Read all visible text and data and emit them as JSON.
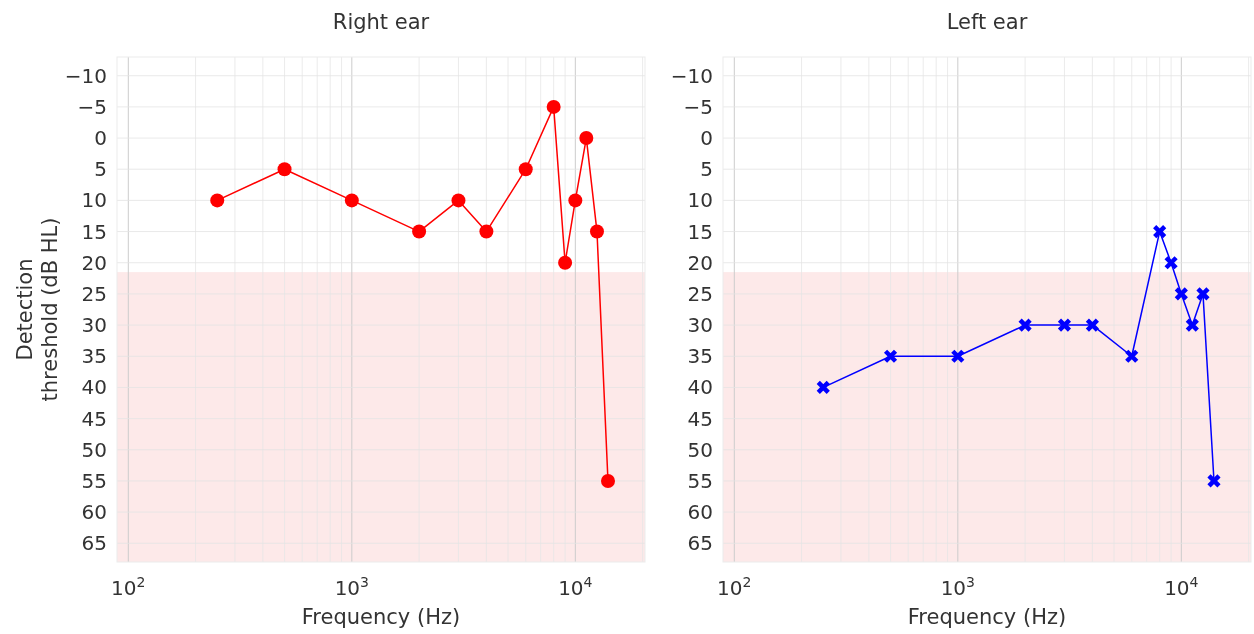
{
  "chart_data": [
    {
      "type": "line",
      "title": "Right ear",
      "xlabel": "Frequency (Hz)",
      "ylabel": "Detection\nthreshold (dB HL)",
      "log": "x",
      "grid": true,
      "marker": "circle",
      "line_style": "solid",
      "x": [
        250,
        500,
        1000,
        2000,
        3000,
        4000,
        6000,
        8000,
        9000,
        10000,
        11200,
        12500,
        14000
      ],
      "series": [
        {
          "color": "#ff0000",
          "values": [
            10,
            5,
            10,
            15,
            10,
            15,
            5,
            -5,
            20,
            10,
            0,
            15,
            55
          ]
        }
      ],
      "xlim": [
        89,
        20500
      ],
      "ylim": [
        68,
        -13
      ],
      "xticks": [
        {
          "value": 100,
          "label": "10$^{2}$"
        },
        {
          "value": 200,
          "label": null
        },
        {
          "value": 300,
          "label": null
        },
        {
          "value": 400,
          "label": null
        },
        {
          "value": 500,
          "label": null
        },
        {
          "value": 600,
          "label": null
        },
        {
          "value": 700,
          "label": null
        },
        {
          "value": 800,
          "label": null
        },
        {
          "value": 900,
          "label": null
        },
        {
          "value": 1000,
          "label": "10$^{3}$"
        },
        {
          "value": 2000,
          "label": null
        },
        {
          "value": 3000,
          "label": null
        },
        {
          "value": 4000,
          "label": null
        },
        {
          "value": 5000,
          "label": null
        },
        {
          "value": 6000,
          "label": null
        },
        {
          "value": 7000,
          "label": null
        },
        {
          "value": 8000,
          "label": null
        },
        {
          "value": 9000,
          "label": null
        },
        {
          "value": 10000,
          "label": "10$^{4}$"
        },
        {
          "value": 20000,
          "label": null
        }
      ],
      "yticks": [
        -10,
        -5,
        0,
        5,
        10,
        15,
        20,
        25,
        30,
        35,
        40,
        45,
        50,
        55,
        60,
        65
      ],
      "bands": [
        {
          "axis": "y",
          "from": 21.5,
          "to": 68,
          "color": "#fde9e9"
        }
      ]
    },
    {
      "type": "line",
      "title": "Left ear",
      "xlabel": "Frequency (Hz)",
      "log": "x",
      "grid": true,
      "marker": "cross",
      "line_style": "solid",
      "x": [
        250,
        500,
        1000,
        2000,
        3000,
        4000,
        6000,
        8000,
        9000,
        10000,
        11200,
        12500,
        14000
      ],
      "series": [
        {
          "color": "#0000ff",
          "values": [
            40,
            35,
            35,
            30,
            30,
            30,
            35,
            15,
            20,
            25,
            30,
            25,
            55
          ]
        }
      ],
      "xlim": [
        89,
        20500
      ],
      "ylim": [
        68,
        -13
      ],
      "xticks": [
        {
          "value": 100,
          "label": "10$^{2}$"
        },
        {
          "value": 200,
          "label": null
        },
        {
          "value": 300,
          "label": null
        },
        {
          "value": 400,
          "label": null
        },
        {
          "value": 500,
          "label": null
        },
        {
          "value": 600,
          "label": null
        },
        {
          "value": 700,
          "label": null
        },
        {
          "value": 800,
          "label": null
        },
        {
          "value": 900,
          "label": null
        },
        {
          "value": 1000,
          "label": "10$^{3}$"
        },
        {
          "value": 2000,
          "label": null
        },
        {
          "value": 3000,
          "label": null
        },
        {
          "value": 4000,
          "label": null
        },
        {
          "value": 5000,
          "label": null
        },
        {
          "value": 6000,
          "label": null
        },
        {
          "value": 7000,
          "label": null
        },
        {
          "value": 8000,
          "label": null
        },
        {
          "value": 9000,
          "label": null
        },
        {
          "value": 10000,
          "label": "10$^{4}$"
        },
        {
          "value": 20000,
          "label": null
        }
      ],
      "yticks": [
        -10,
        -5,
        0,
        5,
        10,
        15,
        20,
        25,
        30,
        35,
        40,
        45,
        50,
        55,
        60,
        65
      ],
      "bands": [
        {
          "axis": "y",
          "from": 21.5,
          "to": 68,
          "color": "#fde9e9"
        }
      ]
    }
  ]
}
